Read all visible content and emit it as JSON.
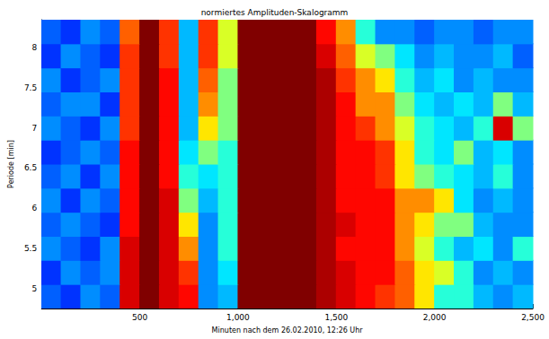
{
  "chart_data": {
    "type": "heatmap",
    "title": "normiertes Amplituden-Skalogramm",
    "x_label": "Minuten nach dem 26.02.2010, 12:26 Uhr",
    "y_label": "Periode [min]",
    "xlim": [
      0,
      2500
    ],
    "xticks": [
      500,
      1000,
      1500,
      2000,
      2500
    ],
    "ylim": [
      4.75,
      8.35
    ],
    "yticks": [
      5,
      5.5,
      6,
      6.5,
      7,
      7.5,
      8
    ],
    "zlim": [
      0,
      1
    ],
    "x": [
      50,
      150,
      250,
      350,
      450,
      550,
      650,
      750,
      850,
      950,
      1050,
      1150,
      1250,
      1350,
      1450,
      1550,
      1650,
      1750,
      1850,
      1950,
      2050,
      2150,
      2250,
      2350,
      2450
    ],
    "y": [
      4.9,
      5.2,
      5.5,
      5.8,
      6.1,
      6.4,
      6.7,
      7.0,
      7.3,
      7.6,
      7.9,
      8.2
    ],
    "values": [
      [
        0.25,
        0.2,
        0.3,
        0.25,
        0.9,
        1,
        0.9,
        0.85,
        0.3,
        0.35,
        1,
        1,
        1,
        1,
        0.95,
        0.9,
        0.85,
        0.8,
        0.75,
        0.6,
        0.45,
        0.45,
        0.35,
        0.3,
        0.35
      ],
      [
        0.2,
        0.3,
        0.25,
        0.3,
        0.9,
        1,
        0.9,
        0.8,
        0.3,
        0.4,
        1,
        1,
        1,
        1,
        0.95,
        0.9,
        0.85,
        0.85,
        0.75,
        0.6,
        0.55,
        0.45,
        0.3,
        0.35,
        0.3
      ],
      [
        0.3,
        0.25,
        0.2,
        0.3,
        0.9,
        1,
        0.9,
        0.7,
        0.3,
        0.45,
        1,
        1,
        1,
        1,
        0.95,
        0.85,
        0.85,
        0.85,
        0.7,
        0.55,
        0.45,
        0.35,
        0.4,
        0.3,
        0.45
      ],
      [
        0.25,
        0.3,
        0.25,
        0.2,
        0.85,
        1,
        0.9,
        0.6,
        0.3,
        0.45,
        1,
        1,
        1,
        1,
        0.95,
        0.9,
        0.85,
        0.85,
        0.7,
        0.6,
        0.5,
        0.5,
        0.35,
        0.3,
        0.3
      ],
      [
        0.3,
        0.2,
        0.3,
        0.25,
        0.85,
        1,
        0.9,
        0.5,
        0.35,
        0.45,
        1,
        1,
        1,
        1,
        0.95,
        0.85,
        0.85,
        0.85,
        0.7,
        0.7,
        0.6,
        0.4,
        0.3,
        0.35,
        0.3
      ],
      [
        0.25,
        0.3,
        0.2,
        0.3,
        0.85,
        1,
        0.85,
        0.45,
        0.4,
        0.45,
        1,
        1,
        1,
        1,
        0.95,
        0.85,
        0.85,
        0.8,
        0.6,
        0.5,
        0.45,
        0.4,
        0.35,
        0.45,
        0.3
      ],
      [
        0.2,
        0.25,
        0.3,
        0.25,
        0.85,
        1,
        0.85,
        0.4,
        0.5,
        0.45,
        1,
        1,
        1,
        1,
        0.95,
        0.85,
        0.85,
        0.8,
        0.6,
        0.45,
        0.4,
        0.5,
        0.35,
        0.4,
        0.3
      ],
      [
        0.3,
        0.25,
        0.2,
        0.3,
        0.8,
        1,
        0.85,
        0.35,
        0.6,
        0.5,
        1,
        1,
        1,
        1,
        0.95,
        0.85,
        0.8,
        0.7,
        0.55,
        0.45,
        0.4,
        0.35,
        0.45,
        0.9,
        0.5
      ],
      [
        0.25,
        0.3,
        0.3,
        0.2,
        0.8,
        1,
        0.85,
        0.35,
        0.7,
        0.5,
        1,
        1,
        1,
        1,
        0.95,
        0.85,
        0.7,
        0.7,
        0.5,
        0.4,
        0.35,
        0.4,
        0.35,
        0.5,
        0.35
      ],
      [
        0.3,
        0.2,
        0.25,
        0.3,
        0.8,
        1,
        0.85,
        0.35,
        0.75,
        0.5,
        1,
        1,
        1,
        1,
        0.95,
        0.8,
        0.7,
        0.6,
        0.45,
        0.35,
        0.4,
        0.3,
        0.35,
        0.3,
        0.3
      ],
      [
        0.2,
        0.3,
        0.25,
        0.2,
        0.8,
        1,
        0.8,
        0.35,
        0.8,
        0.55,
        1,
        1,
        1,
        1,
        0.9,
        0.75,
        0.55,
        0.5,
        0.4,
        0.3,
        0.35,
        0.3,
        0.3,
        0.35,
        0.25
      ],
      [
        0.25,
        0.2,
        0.3,
        0.25,
        0.75,
        1,
        0.8,
        0.35,
        0.8,
        0.55,
        1,
        1,
        1,
        1,
        0.85,
        0.7,
        0.45,
        0.3,
        0.3,
        0.25,
        0.3,
        0.3,
        0.25,
        0.3,
        0.3
      ]
    ]
  }
}
